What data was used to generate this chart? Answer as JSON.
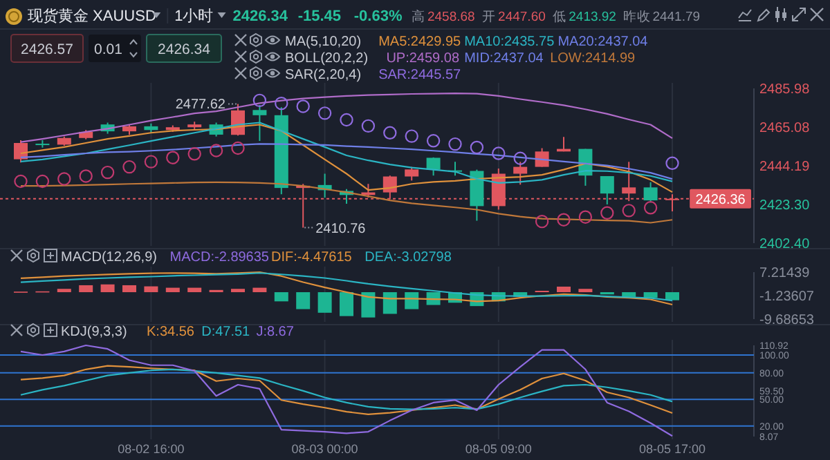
{
  "chart_data": [
    {
      "type": "candlestick",
      "title": "现货黄金 XAUUSD",
      "subtitle": "1小时",
      "categories": [
        null,
        null,
        null,
        null,
        null,
        null,
        null,
        null,
        null,
        null,
        null,
        null,
        null,
        null,
        null,
        null,
        null,
        null,
        null,
        null,
        null,
        null,
        null,
        null,
        null,
        null,
        null,
        null,
        null,
        null,
        null
      ],
      "ohlc": [
        [
          2447.7,
          2458,
          2446,
          2456.5
        ],
        [
          2456.1,
          2458,
          2454,
          2455.9
        ],
        [
          2455.6,
          2460,
          2455,
          2459.2
        ],
        [
          2459.2,
          2463.5,
          2458.5,
          2462.5
        ],
        [
          2466.5,
          2467.5,
          2461.5,
          2462.8
        ],
        [
          2462.8,
          2466.5,
          2461,
          2465.5
        ],
        [
          2465.5,
          2467,
          2462,
          2463.5
        ],
        [
          2463.5,
          2466,
          2462.5,
          2465
        ],
        [
          2465,
          2468,
          2464,
          2466.5
        ],
        [
          2466.5,
          2467.5,
          2460,
          2461
        ],
        [
          2460.9,
          2477.62,
          2460.5,
          2474.1
        ],
        [
          2474.3,
          2477,
          2457.6,
          2471.5
        ],
        [
          2471.5,
          2475.8,
          2428.8,
          2432.2
        ],
        [
          2432.2,
          2434.4,
          2410.76,
          2433.4
        ],
        [
          2433.8,
          2439.9,
          2427,
          2431
        ],
        [
          2430.6,
          2431.6,
          2423.7,
          2428.4
        ],
        [
          2428.4,
          2434.4,
          2427,
          2429.8
        ],
        [
          2429.8,
          2438.9,
          2426.1,
          2438.4
        ],
        [
          2438.4,
          2443.6,
          2436.2,
          2442.2
        ],
        [
          2448.5,
          2448.7,
          2438.9,
          2442.1
        ],
        [
          2441.7,
          2446.3,
          2438.9,
          2441.5
        ],
        [
          2441.4,
          2442.1,
          2414.5,
          2422.4
        ],
        [
          2422.4,
          2442.7,
          2420.5,
          2439.9
        ],
        [
          2439.9,
          2446.3,
          2434,
          2443.6
        ],
        [
          2443.6,
          2453.7,
          2443.6,
          2451.9
        ],
        [
          2451.9,
          2459.8,
          2451.9,
          2453.3
        ],
        [
          2453.3,
          2453.3,
          2433.4,
          2438.9
        ],
        [
          2438.6,
          2438.6,
          2423.3,
          2429.2
        ],
        [
          2429.2,
          2446.3,
          2425.1,
          2432.5
        ],
        [
          2432.5,
          2435.3,
          2424.3,
          2425.5
        ],
        [
          2425.8,
          2428.8,
          2419.6,
          2426.36
        ]
      ],
      "colors": [
        "#e0575f",
        "#1db593",
        "#e0575f",
        "#e0575f",
        "#1db593",
        "#e0575f",
        "#1db593",
        "#e0575f",
        "#e0575f",
        "#1db593",
        "#e0575f",
        "#1db593",
        "#1db593",
        "#e0575f",
        "#1db593",
        "#1db593",
        "#e0575f",
        "#e0575f",
        "#e0575f",
        "#1db593",
        "#1db593",
        "#1db593",
        "#e0575f",
        "#e0575f",
        "#e0575f",
        "#e0575f",
        "#1db593",
        "#1db593",
        "#e0575f",
        "#1db593",
        "#e0575f"
      ],
      "ylim": [
        2402.4,
        2485.98
      ],
      "yticks": [
        2485.98,
        2465.08,
        2444.19,
        {
          "value": 2423.3,
          "label": "2423.30"
        },
        {
          "value": 2402.4,
          "label": "2402.40"
        }
      ],
      "tick_labels": "y",
      "grid": "x",
      "legend": "top",
      "series": [
        {
          "name": "MA5:2429.95",
          "type": "line",
          "color": "#e0913c",
          "values": [
            2450.9,
            2452.6,
            2454.3,
            2456.5,
            2458.7,
            2460.3,
            2462.0,
            2463.1,
            2463.6,
            2463.9,
            2465.3,
            2466.4,
            2463.1,
            2455.4,
            2447.6,
            2439.9,
            2431.1,
            2432.2,
            2434.4,
            2435.5,
            2436.0,
            2437.1,
            2437.7,
            2438.2,
            2439.3,
            2442.1,
            2445.4,
            2443.7,
            2441.0,
            2436.6,
            2429.95
          ]
        },
        {
          "name": "MA10:2435.75",
          "type": "line",
          "color": "#2bb5c4",
          "values": [
            2446.5,
            2447.6,
            2449.3,
            2450.9,
            2453.1,
            2455.3,
            2457.6,
            2459.8,
            2462.0,
            2464.2,
            2466.4,
            2467.5,
            2463.1,
            2458.7,
            2454.3,
            2449.8,
            2447.1,
            2444.9,
            2443.2,
            2442.1,
            2441.0,
            2437.1,
            2434.9,
            2435.5,
            2436.6,
            2439.3,
            2441.5,
            2441.3,
            2440.4,
            2438.7,
            2435.75
          ]
        },
        {
          "name": "MA20:2437.04",
          "type": "line",
          "color": "#6f7fe8",
          "values": [
            2448.7,
            2449.3,
            2450.1,
            2450.9,
            2451.5,
            2451.8,
            2452.3,
            2452.9,
            2453.7,
            2454.5,
            2455.4,
            2456.0,
            2455.9,
            2455.6,
            2455.4,
            2454.8,
            2454.3,
            2453.7,
            2453.1,
            2452.3,
            2451.5,
            2450.6,
            2449.8,
            2448.7,
            2447.6,
            2446.5,
            2445.4,
            2444.3,
            2442.6,
            2440.4,
            2437.04
          ]
        },
        {
          "name": "UP:2459.08",
          "type": "line",
          "color": "#b06cc9",
          "values": [
            2457.0,
            2458.7,
            2460.6,
            2462.5,
            2464.2,
            2466.4,
            2468.6,
            2470.5,
            2472.5,
            2473.6,
            2475.8,
            2478.0,
            2479.4,
            2480.5,
            2481.3,
            2481.9,
            2482.4,
            2482.7,
            2483.0,
            2483.1,
            2483.3,
            2483.1,
            2481.9,
            2480.2,
            2478.6,
            2476.9,
            2474.7,
            2472.2,
            2469.2,
            2466.4,
            2459.08
          ]
        },
        {
          "name": "LOW:2414.99",
          "type": "line",
          "color": "#c0783a",
          "values": [
            2433.3,
            2433.3,
            2433.5,
            2433.8,
            2434.1,
            2434.4,
            2434.6,
            2434.9,
            2435.2,
            2435.3,
            2435.2,
            2434.9,
            2434.4,
            2433.3,
            2431.6,
            2429.9,
            2427.7,
            2425.5,
            2423.9,
            2422.8,
            2421.7,
            2420.5,
            2418.3,
            2416.7,
            2415.6,
            2415.3,
            2415.0,
            2414.7,
            2414.5,
            2413.4,
            2414.99
          ]
        },
        {
          "name": "SAR:2445.57",
          "type": "scatter",
          "marker": "circle",
          "colors": [
            "#c0396e",
            "#c0396e",
            "#c0396e",
            "#c0396e",
            "#c0396e",
            "#c0396e",
            "#c0396e",
            "#c0396e",
            "#c0396e",
            "#c0396e",
            "#c0396e",
            "#8f6be0",
            "#8f6be0",
            "#8f6be0",
            "#8f6be0",
            "#8f6be0",
            "#8f6be0",
            "#8f6be0",
            "#8f6be0",
            "#8f6be0",
            "#8f6be0",
            "#8f6be0",
            "#8f6be0",
            "#8f6be0",
            "#c0396e",
            "#c0396e",
            "#c0396e",
            "#c0396e",
            "#c0396e",
            "#c0396e",
            "#8f6be0"
          ],
          "values": [
            2435.8,
            2435.8,
            2437.1,
            2438.6,
            2440.6,
            2443.6,
            2446.4,
            2448.6,
            2450.6,
            2452.4,
            2453.7,
            2479.5,
            2477.9,
            2476.3,
            2472.6,
            2469.0,
            2465.7,
            2462.0,
            2460.2,
            2457.7,
            2455.9,
            2454.1,
            2450.9,
            2448.2,
            2414.1,
            2415.0,
            2416.5,
            2418.7,
            2420.0,
            2421.5,
            2445.57
          ]
        }
      ],
      "ref_lines": [
        {
          "axis": "y",
          "value": 2426.36,
          "label": "2426.36",
          "color": "#e0575f",
          "line_style": "dotted"
        }
      ],
      "annotations": [
        "2426.34",
        "-15.45",
        "-0.63%",
        "高",
        "2458.68",
        "开",
        "2447.60",
        "低",
        "2413.92",
        "昨收",
        "2441.79",
        "2426.57",
        "0.01",
        "2426.34",
        "MA(5,10,20)",
        "BOLL(20,2,2)",
        "SAR(2,20,4)",
        "2477.62",
        "2410.76",
        "MID:2437.04"
      ]
    },
    {
      "type": "bar",
      "title": "MACD(12,26,9)",
      "annotations": [
        "MACD:-2.89635"
      ],
      "categories": [
        null,
        null,
        null,
        null,
        null,
        null,
        null,
        null,
        null,
        null,
        null,
        null,
        null,
        null,
        null,
        null,
        null,
        null,
        null,
        null,
        null,
        null,
        null,
        null,
        null,
        null,
        null,
        null,
        null,
        null,
        null
      ],
      "ylim": [
        -9.68653,
        7.21439
      ],
      "yticks": [
        7.21439,
        -1.23607,
        -9.68653
      ],
      "tick_labels": "y",
      "grid": "x",
      "legend": "top left",
      "series": [
        {
          "type": "bar",
          "colors": [
            "#e0575f",
            "#e0575f",
            "#e0575f",
            "#e0575f",
            "#e0575f",
            "#e0575f",
            "#e0575f",
            "#e0575f",
            "#e0575f",
            "#e0575f",
            "#e0575f",
            "#e0575f",
            "#1db593",
            "#1db593",
            "#1db593",
            "#1db593",
            "#1db593",
            "#1db593",
            "#1db593",
            "#1db593",
            "#1db593",
            "#1db593",
            "#1db593",
            "#1db593",
            "#e0575f",
            "#e0575f",
            "#e0575f",
            "#1db593",
            "#1db593",
            "#1db593",
            "#1db593"
          ],
          "values": [
            0.2,
            0.3,
            1.2,
            2.5,
            2.8,
            2.5,
            2.1,
            1.6,
            1.6,
            0.8,
            1.2,
            1.6,
            -3.3,
            -6.1,
            -7.4,
            -8.6,
            -9.1,
            -7.8,
            -6.1,
            -4.6,
            -3.8,
            -5.0,
            -3.3,
            -1.7,
            0.5,
            2.0,
            1.2,
            -0.8,
            -1.7,
            -2.0,
            -2.89635
          ]
        },
        {
          "name": "DIF:-4.47615",
          "type": "line",
          "color": "#e0913c",
          "values": [
            5.0,
            5.4,
            5.8,
            6.1,
            6.4,
            6.6,
            6.8,
            6.9,
            6.8,
            6.6,
            6.9,
            7.21,
            5.8,
            3.6,
            1.7,
            0,
            -1.7,
            -2.3,
            -2.3,
            -2.5,
            -2.6,
            -3.3,
            -3.0,
            -2.0,
            -1.3,
            -0.7,
            -1.0,
            -1.7,
            -2.0,
            -2.6,
            -4.47615
          ]
        },
        {
          "name": "DEA:-3.02798",
          "type": "line",
          "color": "#2bb5c4",
          "values": [
            3.6,
            4.0,
            4.4,
            4.8,
            5.1,
            5.4,
            5.6,
            5.9,
            6.1,
            6.3,
            6.5,
            6.9,
            6.4,
            5.8,
            5.1,
            4.1,
            3.0,
            2.1,
            1.3,
            0.5,
            -0.3,
            -1.0,
            -1.3,
            -1.4,
            -1.4,
            -1.3,
            -1.2,
            -1.5,
            -1.8,
            -2.1,
            -3.02798
          ]
        }
      ]
    },
    {
      "type": "line",
      "title": "KDJ(9,3,3)",
      "categories": [
        null,
        null,
        null,
        null,
        null,
        null,
        "08-02 16:00",
        null,
        null,
        null,
        null,
        null,
        null,
        null,
        "08-03 00:00",
        null,
        null,
        null,
        null,
        null,
        null,
        null,
        "08-05 09:00",
        null,
        null,
        null,
        null,
        null,
        null,
        null,
        "08-05 17:00"
      ],
      "ylim": [
        8.07,
        110.92
      ],
      "yticks": [
        110.92,
        {
          "value": 100,
          "label": "100.00"
        },
        {
          "value": 80,
          "label": "80.00"
        },
        {
          "value": 59.5,
          "label": "59.50"
        },
        {
          "value": 50,
          "label": "50.00"
        },
        {
          "value": 20,
          "label": "20.00"
        },
        8.07
      ],
      "grid": "x",
      "legend": "top left",
      "ref_lines": [
        {
          "axis": "y",
          "value": 100,
          "color": "#2f74d0"
        },
        {
          "axis": "y",
          "value": 80,
          "color": "#2f74d0"
        },
        {
          "axis": "y",
          "value": 50,
          "color": "#2f74d0"
        },
        {
          "axis": "y",
          "value": 20,
          "color": "#2f74d0"
        }
      ],
      "series": [
        {
          "name": "K:34.56",
          "color": "#e0913c",
          "values": [
            72.3,
            74.0,
            76.9,
            83.8,
            87.9,
            86.7,
            85.0,
            83.8,
            82.7,
            70.6,
            73.5,
            71.2,
            49.2,
            44.6,
            40.6,
            36.0,
            33.1,
            34.8,
            37.7,
            40.6,
            43.5,
            38.9,
            50.4,
            60.8,
            73.5,
            79.2,
            71.2,
            57.9,
            52.1,
            43.5,
            34.56
          ]
        },
        {
          "name": "D:47.51",
          "color": "#2bb5c4",
          "values": [
            55.0,
            60.8,
            65.4,
            71.2,
            76.9,
            79.8,
            82.7,
            83.8,
            82.1,
            79.8,
            76.9,
            74.0,
            66.5,
            59.6,
            52.1,
            46.3,
            41.7,
            39.4,
            38.8,
            39.4,
            40.6,
            38.9,
            44.6,
            52.1,
            59.0,
            65.4,
            66.5,
            63.6,
            59.6,
            55.0,
            47.51
          ]
        },
        {
          "name": "J:8.67",
          "color": "#8f6be0",
          "values": [
            104.0,
            100,
            104.0,
            110.92,
            106.9,
            94.2,
            88.5,
            88.5,
            82.1,
            53.8,
            66.5,
            61.9,
            15.8,
            14.6,
            13.5,
            11.7,
            13.5,
            26.1,
            37.7,
            46.3,
            49.2,
            37.7,
            66.5,
            86.7,
            105.8,
            105.8,
            83.8,
            46.3,
            36.5,
            23.3,
            8.67
          ]
        }
      ]
    }
  ]
}
